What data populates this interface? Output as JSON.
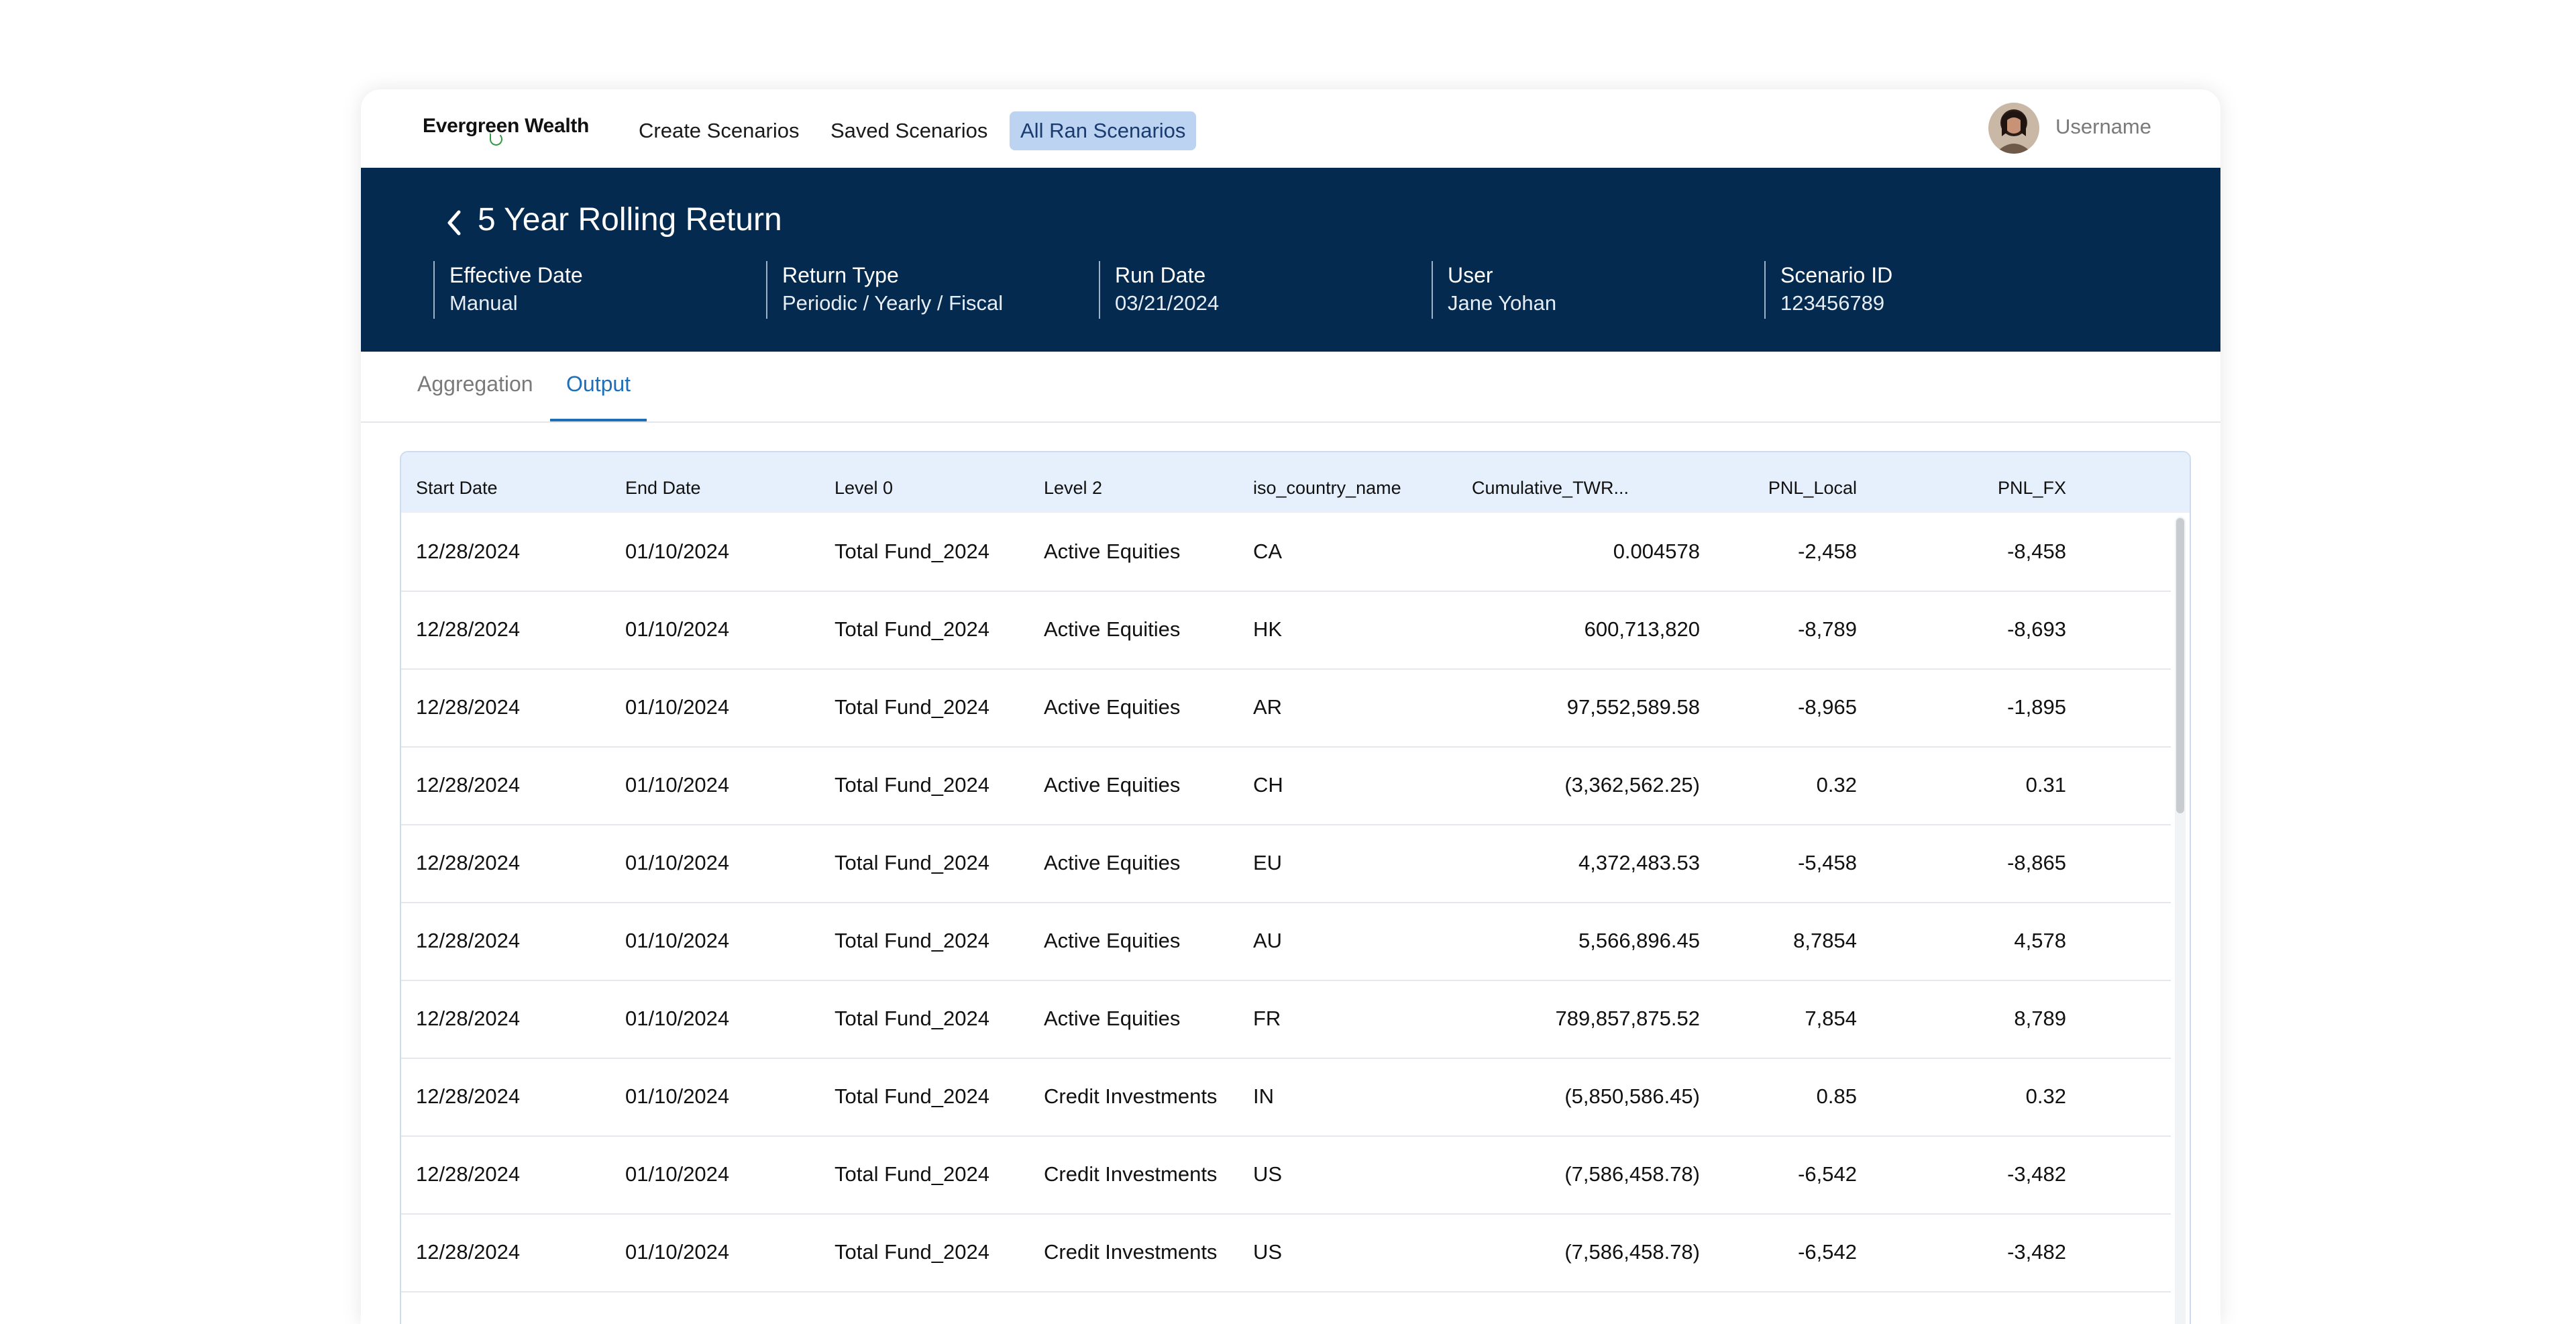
{
  "nav": {
    "brand": "Evergreen Wealth",
    "links": [
      "Create Scenarios",
      "Saved Scenarios",
      "All Ran Scenarios"
    ],
    "username": "Username"
  },
  "header": {
    "title": "5 Year Rolling Return",
    "meta": [
      {
        "label": "Effective Date",
        "value": "Manual"
      },
      {
        "label": "Return Type",
        "value": "Periodic / Yearly / Fiscal"
      },
      {
        "label": "Run Date",
        "value": "03/21/2024"
      },
      {
        "label": "User",
        "value": "Jane Yohan"
      },
      {
        "label": "Scenario ID",
        "value": "123456789"
      }
    ]
  },
  "tabs": [
    "Aggregation",
    "Output"
  ],
  "table": {
    "columns": [
      "Start Date",
      "End Date",
      "Level 0",
      "Level 2",
      "iso_country_name",
      "Cumulative_TWR...",
      "PNL_Local",
      "PNL_FX"
    ],
    "rows": [
      [
        "12/28/2024",
        "01/10/2024",
        "Total Fund_2024",
        "Active Equities",
        "CA",
        "0.004578",
        "-2,458",
        "-8,458"
      ],
      [
        "12/28/2024",
        "01/10/2024",
        "Total Fund_2024",
        "Active Equities",
        "HK",
        "600,713,820",
        "-8,789",
        "-8,693"
      ],
      [
        "12/28/2024",
        "01/10/2024",
        "Total Fund_2024",
        "Active Equities",
        "AR",
        "97,552,589.58",
        "-8,965",
        "-1,895"
      ],
      [
        "12/28/2024",
        "01/10/2024",
        "Total Fund_2024",
        "Active Equities",
        "CH",
        "(3,362,562.25)",
        "0.32",
        "0.31"
      ],
      [
        "12/28/2024",
        "01/10/2024",
        "Total Fund_2024",
        "Active Equities",
        "EU",
        "4,372,483.53",
        "-5,458",
        "-8,865"
      ],
      [
        "12/28/2024",
        "01/10/2024",
        "Total Fund_2024",
        "Active Equities",
        "AU",
        "5,566,896.45",
        "8,7854",
        "4,578"
      ],
      [
        "12/28/2024",
        "01/10/2024",
        "Total Fund_2024",
        "Active Equities",
        "FR",
        "789,857,875.52",
        "7,854",
        "8,789"
      ],
      [
        "12/28/2024",
        "01/10/2024",
        "Total Fund_2024",
        "Credit Investments",
        "IN",
        "(5,850,586.45)",
        "0.85",
        "0.32"
      ],
      [
        "12/28/2024",
        "01/10/2024",
        "Total Fund_2024",
        "Credit Investments",
        "US",
        "(7,586,458.78)",
        "-6,542",
        "-3,482"
      ],
      [
        "12/28/2024",
        "01/10/2024",
        "Total Fund_2024",
        "Credit Investments",
        "US",
        "(7,586,458.78)",
        "-6,542",
        "-3,482"
      ]
    ]
  },
  "colors": {
    "header_bg": "#042a4f",
    "active_nav_bg": "#bcd3f1",
    "active_tab": "#1f6fb8",
    "table_header_bg": "#e6f0fc"
  }
}
